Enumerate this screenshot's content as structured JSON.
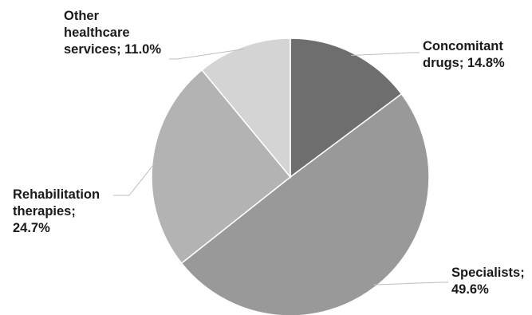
{
  "chart_data": {
    "type": "pie",
    "start_angle_deg": 0,
    "direction": "clockwise",
    "slices": [
      {
        "lines": [
          "Concomitant",
          "drugs; 14.8%"
        ],
        "category": "Concomitant drugs",
        "value": 14.8,
        "color": "#6e6e6e"
      },
      {
        "lines": [
          "Specialists;",
          "49.6%"
        ],
        "category": "Specialists",
        "value": 49.6,
        "color": "#999999"
      },
      {
        "lines": [
          "Rehabilitation",
          "therapies;",
          "24.7%"
        ],
        "category": "Rehabilitation therapies",
        "value": 24.7,
        "color": "#b3b3b3"
      },
      {
        "lines": [
          "Other",
          "healthcare",
          "services; 11.0%"
        ],
        "category": "Other healthcare services",
        "value": 11.0,
        "color": "#d4d4d4"
      }
    ]
  }
}
